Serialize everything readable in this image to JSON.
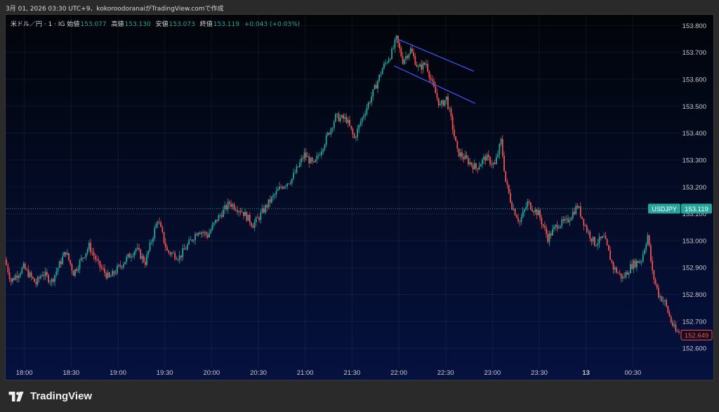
{
  "header": {
    "caption": "3月 01, 2026 03:30 UTC+9、kokoroodoranaiがTradingView.comで作成"
  },
  "legend": {
    "symbol": "米ドル／円 · 1 · IG",
    "open_label": "始値",
    "open": "153.077",
    "high_label": "高値",
    "high": "153.130",
    "low_label": "安値",
    "low": "153.073",
    "close_label": "終値",
    "close": "153.119",
    "change": "+0.043 (+0.03%)"
  },
  "footer": {
    "brand": "TradingView"
  },
  "colors": {
    "up": "#26a69a",
    "down": "#ef5350",
    "line": "#3f51f5",
    "last_tag": "#26a69a",
    "low_tag": "#ef5350"
  },
  "chart_data": {
    "type": "candlestick",
    "symbol": "USDJPY",
    "timeframe": "1",
    "y_ticks": [
      "153.800",
      "153.700",
      "153.600",
      "153.500",
      "153.400",
      "153.300",
      "153.200",
      "153.100",
      "153.000",
      "152.900",
      "152.800",
      "152.700",
      "152.600"
    ],
    "ylim": [
      152.53,
      153.84
    ],
    "x_ticks": [
      "18:00",
      "18:30",
      "19:00",
      "19:30",
      "20:00",
      "20:30",
      "21:00",
      "21:30",
      "22:00",
      "22:30",
      "23:00",
      "23:30",
      "13",
      "00:30"
    ],
    "x_tick_times": [
      0,
      30,
      60,
      90,
      120,
      150,
      180,
      210,
      240,
      270,
      300,
      330,
      360,
      390
    ],
    "xlim": [
      -12,
      420
    ],
    "price_tag": {
      "label": "USDJPY",
      "value": "153.119",
      "price": 153.119
    },
    "low_tag": {
      "value": "152.649",
      "price": 152.649
    },
    "trend_lines": [
      {
        "from": {
          "t": 239,
          "p": 153.75
        },
        "to": {
          "t": 288,
          "p": 153.63
        }
      },
      {
        "from": {
          "t": 237,
          "p": 153.65
        },
        "to": {
          "t": 289,
          "p": 153.51
        }
      }
    ],
    "anchors": [
      {
        "t": -12,
        "p": 152.93
      },
      {
        "t": -8,
        "p": 152.85
      },
      {
        "t": 0,
        "p": 152.9
      },
      {
        "t": 8,
        "p": 152.84
      },
      {
        "t": 12,
        "p": 152.88
      },
      {
        "t": 18,
        "p": 152.85
      },
      {
        "t": 27,
        "p": 152.96
      },
      {
        "t": 32,
        "p": 152.88
      },
      {
        "t": 42,
        "p": 152.98
      },
      {
        "t": 48,
        "p": 152.91
      },
      {
        "t": 55,
        "p": 152.86
      },
      {
        "t": 64,
        "p": 152.92
      },
      {
        "t": 72,
        "p": 152.97
      },
      {
        "t": 78,
        "p": 152.92
      },
      {
        "t": 86,
        "p": 153.08
      },
      {
        "t": 92,
        "p": 152.96
      },
      {
        "t": 100,
        "p": 152.94
      },
      {
        "t": 106,
        "p": 152.99
      },
      {
        "t": 112,
        "p": 153.04
      },
      {
        "t": 118,
        "p": 153.02
      },
      {
        "t": 124,
        "p": 153.08
      },
      {
        "t": 132,
        "p": 153.14
      },
      {
        "t": 140,
        "p": 153.11
      },
      {
        "t": 147,
        "p": 153.06
      },
      {
        "t": 150,
        "p": 153.08
      },
      {
        "t": 157,
        "p": 153.14
      },
      {
        "t": 165,
        "p": 153.2
      },
      {
        "t": 172,
        "p": 153.23
      },
      {
        "t": 180,
        "p": 153.32
      },
      {
        "t": 186,
        "p": 153.28
      },
      {
        "t": 194,
        "p": 153.38
      },
      {
        "t": 200,
        "p": 153.46
      },
      {
        "t": 207,
        "p": 153.45
      },
      {
        "t": 212,
        "p": 153.38
      },
      {
        "t": 218,
        "p": 153.47
      },
      {
        "t": 224,
        "p": 153.55
      },
      {
        "t": 230,
        "p": 153.64
      },
      {
        "t": 236,
        "p": 153.7
      },
      {
        "t": 239,
        "p": 153.75
      },
      {
        "t": 243,
        "p": 153.67
      },
      {
        "t": 248,
        "p": 153.71
      },
      {
        "t": 253,
        "p": 153.64
      },
      {
        "t": 258,
        "p": 153.66
      },
      {
        "t": 262,
        "p": 153.58
      },
      {
        "t": 267,
        "p": 153.5
      },
      {
        "t": 271,
        "p": 153.53
      },
      {
        "t": 274,
        "p": 153.45
      },
      {
        "t": 278,
        "p": 153.33
      },
      {
        "t": 284,
        "p": 153.3
      },
      {
        "t": 290,
        "p": 153.27
      },
      {
        "t": 296,
        "p": 153.31
      },
      {
        "t": 302,
        "p": 153.28
      },
      {
        "t": 306,
        "p": 153.37
      },
      {
        "t": 309,
        "p": 153.22
      },
      {
        "t": 313,
        "p": 153.13
      },
      {
        "t": 318,
        "p": 153.07
      },
      {
        "t": 323,
        "p": 153.14
      },
      {
        "t": 330,
        "p": 153.1
      },
      {
        "t": 336,
        "p": 153.01
      },
      {
        "t": 342,
        "p": 153.06
      },
      {
        "t": 348,
        "p": 153.07
      },
      {
        "t": 355,
        "p": 153.13
      },
      {
        "t": 361,
        "p": 153.04
      },
      {
        "t": 366,
        "p": 152.99
      },
      {
        "t": 372,
        "p": 153.01
      },
      {
        "t": 378,
        "p": 152.9
      },
      {
        "t": 384,
        "p": 152.86
      },
      {
        "t": 390,
        "p": 152.91
      },
      {
        "t": 396,
        "p": 152.93
      },
      {
        "t": 400,
        "p": 153.02
      },
      {
        "t": 403,
        "p": 152.88
      },
      {
        "t": 407,
        "p": 152.8
      },
      {
        "t": 411,
        "p": 152.77
      },
      {
        "t": 415,
        "p": 152.7
      },
      {
        "t": 418,
        "p": 152.66
      },
      {
        "t": 420,
        "p": 152.66
      }
    ]
  }
}
